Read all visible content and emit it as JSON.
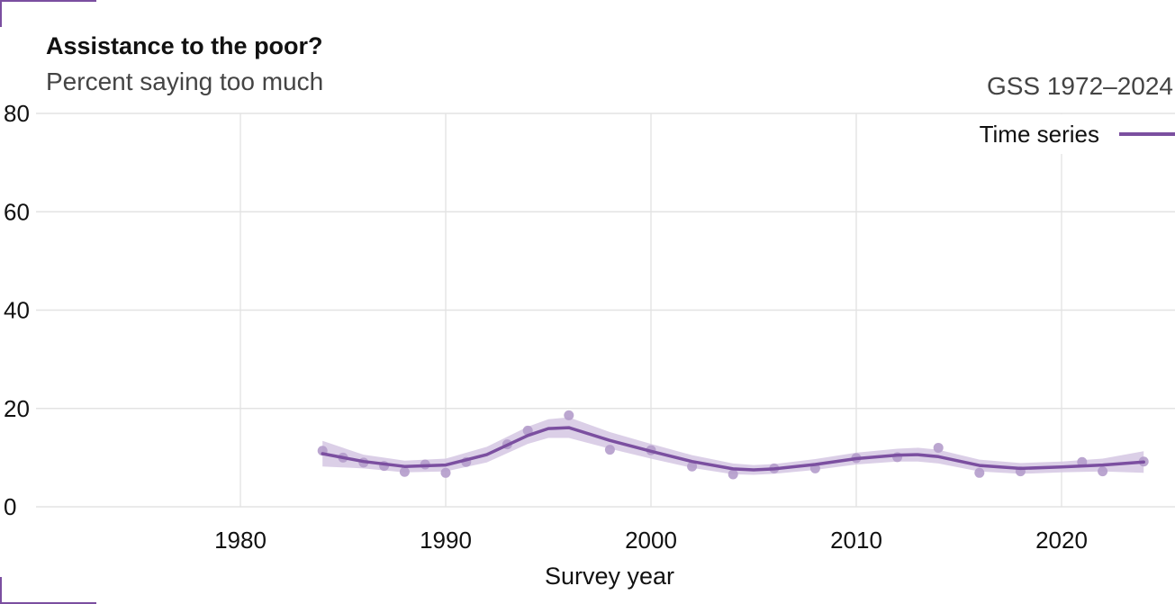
{
  "chart_data": {
    "type": "line",
    "title": "Assistance to the poor?",
    "subtitle": "Percent saying too much",
    "caption": "GSS 1972–2024",
    "xlabel": "Survey year",
    "ylabel": "",
    "xlim": [
      1972,
      2024
    ],
    "ylim": [
      0,
      80
    ],
    "xticks": [
      "1980",
      "1990",
      "2000",
      "2010",
      "2020"
    ],
    "yticks": [
      "0",
      "20",
      "40",
      "60",
      "80"
    ],
    "grid": true,
    "legend_position": "top-right",
    "colors": {
      "series": "#7b4fa0",
      "band": "#d5c7e3",
      "points": "#b49ccb",
      "grid": "#e3e3e3"
    },
    "series": [
      {
        "name": "Time series",
        "points": [
          {
            "x": 1984,
            "y": 11.4
          },
          {
            "x": 1985,
            "y": 10.0
          },
          {
            "x": 1986,
            "y": 9.0
          },
          {
            "x": 1987,
            "y": 8.3
          },
          {
            "x": 1988,
            "y": 7.1
          },
          {
            "x": 1989,
            "y": 8.6
          },
          {
            "x": 1990,
            "y": 6.9
          },
          {
            "x": 1991,
            "y": 9.1
          },
          {
            "x": 1993,
            "y": 12.7
          },
          {
            "x": 1994,
            "y": 15.5
          },
          {
            "x": 1996,
            "y": 18.6
          },
          {
            "x": 1998,
            "y": 11.6
          },
          {
            "x": 2000,
            "y": 11.5
          },
          {
            "x": 2002,
            "y": 8.2
          },
          {
            "x": 2004,
            "y": 6.6
          },
          {
            "x": 2006,
            "y": 7.8
          },
          {
            "x": 2008,
            "y": 7.8
          },
          {
            "x": 2010,
            "y": 9.9
          },
          {
            "x": 2012,
            "y": 10.1
          },
          {
            "x": 2014,
            "y": 12.0
          },
          {
            "x": 2016,
            "y": 6.9
          },
          {
            "x": 2018,
            "y": 7.2
          },
          {
            "x": 2021,
            "y": 9.1
          },
          {
            "x": 2022,
            "y": 7.2
          },
          {
            "x": 2024,
            "y": 9.2
          }
        ],
        "trend": [
          {
            "x": 1984,
            "y": 10.8,
            "lo": 8.2,
            "hi": 13.4
          },
          {
            "x": 1986,
            "y": 9.2,
            "lo": 7.8,
            "hi": 10.6
          },
          {
            "x": 1988,
            "y": 8.2,
            "lo": 7.0,
            "hi": 9.4
          },
          {
            "x": 1990,
            "y": 8.5,
            "lo": 7.2,
            "hi": 9.8
          },
          {
            "x": 1992,
            "y": 10.6,
            "lo": 9.0,
            "hi": 12.2
          },
          {
            "x": 1994,
            "y": 14.5,
            "lo": 12.8,
            "hi": 16.3
          },
          {
            "x": 1995,
            "y": 15.9,
            "lo": 14.0,
            "hi": 17.8
          },
          {
            "x": 1996,
            "y": 16.1,
            "lo": 14.0,
            "hi": 18.2
          },
          {
            "x": 1998,
            "y": 13.5,
            "lo": 11.8,
            "hi": 15.2
          },
          {
            "x": 2000,
            "y": 11.3,
            "lo": 9.8,
            "hi": 12.8
          },
          {
            "x": 2002,
            "y": 9.2,
            "lo": 7.9,
            "hi": 10.5
          },
          {
            "x": 2004,
            "y": 7.7,
            "lo": 6.6,
            "hi": 8.8
          },
          {
            "x": 2005,
            "y": 7.5,
            "lo": 6.5,
            "hi": 8.5
          },
          {
            "x": 2006,
            "y": 7.7,
            "lo": 6.7,
            "hi": 8.7
          },
          {
            "x": 2008,
            "y": 8.6,
            "lo": 7.5,
            "hi": 9.7
          },
          {
            "x": 2010,
            "y": 9.8,
            "lo": 8.6,
            "hi": 11.0
          },
          {
            "x": 2012,
            "y": 10.5,
            "lo": 9.2,
            "hi": 11.8
          },
          {
            "x": 2013,
            "y": 10.6,
            "lo": 9.2,
            "hi": 12.0
          },
          {
            "x": 2014,
            "y": 10.2,
            "lo": 8.8,
            "hi": 11.6
          },
          {
            "x": 2016,
            "y": 8.4,
            "lo": 7.2,
            "hi": 9.6
          },
          {
            "x": 2018,
            "y": 7.8,
            "lo": 6.7,
            "hi": 8.9
          },
          {
            "x": 2020,
            "y": 8.1,
            "lo": 7.0,
            "hi": 9.2
          },
          {
            "x": 2022,
            "y": 8.5,
            "lo": 7.2,
            "hi": 9.8
          },
          {
            "x": 2024,
            "y": 9.1,
            "lo": 6.9,
            "hi": 11.3
          }
        ]
      }
    ]
  }
}
